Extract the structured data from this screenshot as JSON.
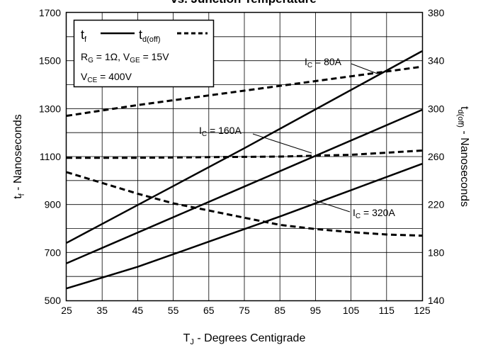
{
  "chart_data": {
    "type": "line",
    "title": "vs. Junction Temperature",
    "xlabel": {
      "main": "T",
      "sub": "J",
      "rest": " - Degrees Centigrade"
    },
    "ylabel_left": {
      "main": "t",
      "sub": "f",
      "rest": " - Nanoseconds"
    },
    "ylabel_right": {
      "main": "t",
      "sub": "d(off)",
      "rest": " - Nanoseconds"
    },
    "xlim": [
      25,
      125
    ],
    "ylim_left": [
      500,
      1700
    ],
    "ylim_right": [
      140,
      380
    ],
    "x_ticks": [
      25,
      35,
      45,
      55,
      65,
      75,
      85,
      95,
      105,
      115,
      125
    ],
    "y_ticks_left": [
      500,
      700,
      900,
      1100,
      1300,
      1500,
      1700
    ],
    "y_ticks_right": [
      140,
      180,
      220,
      260,
      300,
      340,
      380
    ],
    "grid": true,
    "legend_position": "top-left",
    "legend": {
      "tf": {
        "main": "t",
        "sub": "f"
      },
      "td": {
        "main": "t",
        "sub": "d(off)"
      },
      "cond1": "R G = 1Ω,  V GE = 15V",
      "cond1_parts": [
        "R",
        "G",
        " = 1Ω,  V",
        "GE",
        " = 15V"
      ],
      "cond2_parts": [
        "V",
        "CE",
        " = 400V"
      ]
    },
    "series": [
      {
        "kind": "tf",
        "axis": "left",
        "style": "solid",
        "x": [
          25,
          75,
          125
        ],
        "y": [
          740,
          1135,
          1540
        ]
      },
      {
        "kind": "tf",
        "axis": "left",
        "style": "solid",
        "x": [
          25,
          75,
          125
        ],
        "y": [
          655,
          975,
          1295
        ]
      },
      {
        "kind": "tf",
        "axis": "left",
        "style": "solid",
        "x": [
          25,
          45,
          65,
          85,
          105,
          125
        ],
        "y": [
          550,
          640,
          745,
          850,
          960,
          1070
        ]
      },
      {
        "kind": "td(off)",
        "axis": "right",
        "style": "dashed",
        "x": [
          25,
          45,
          65,
          85,
          105,
          125
        ],
        "y": [
          294,
          303,
          311,
          319,
          327,
          335
        ]
      },
      {
        "kind": "td(off)",
        "axis": "right",
        "style": "dashed",
        "x": [
          25,
          45,
          65,
          85,
          105,
          125
        ],
        "y": [
          259,
          259,
          259.5,
          260,
          261.5,
          265
        ]
      },
      {
        "kind": "td(off)",
        "axis": "right",
        "style": "dashed",
        "x": [
          25,
          35,
          45,
          55,
          65,
          75,
          85,
          95,
          105,
          115,
          125
        ],
        "y": [
          247,
          238,
          229,
          221,
          215,
          209,
          203,
          199.5,
          197,
          195,
          194
        ]
      }
    ],
    "annotations": [
      {
        "main": "I",
        "sub": "C",
        "rest": " = 80A"
      },
      {
        "main": "I",
        "sub": "C",
        "rest": " = 160A"
      },
      {
        "main": "I",
        "sub": "C",
        "rest": " = 320A"
      }
    ]
  }
}
